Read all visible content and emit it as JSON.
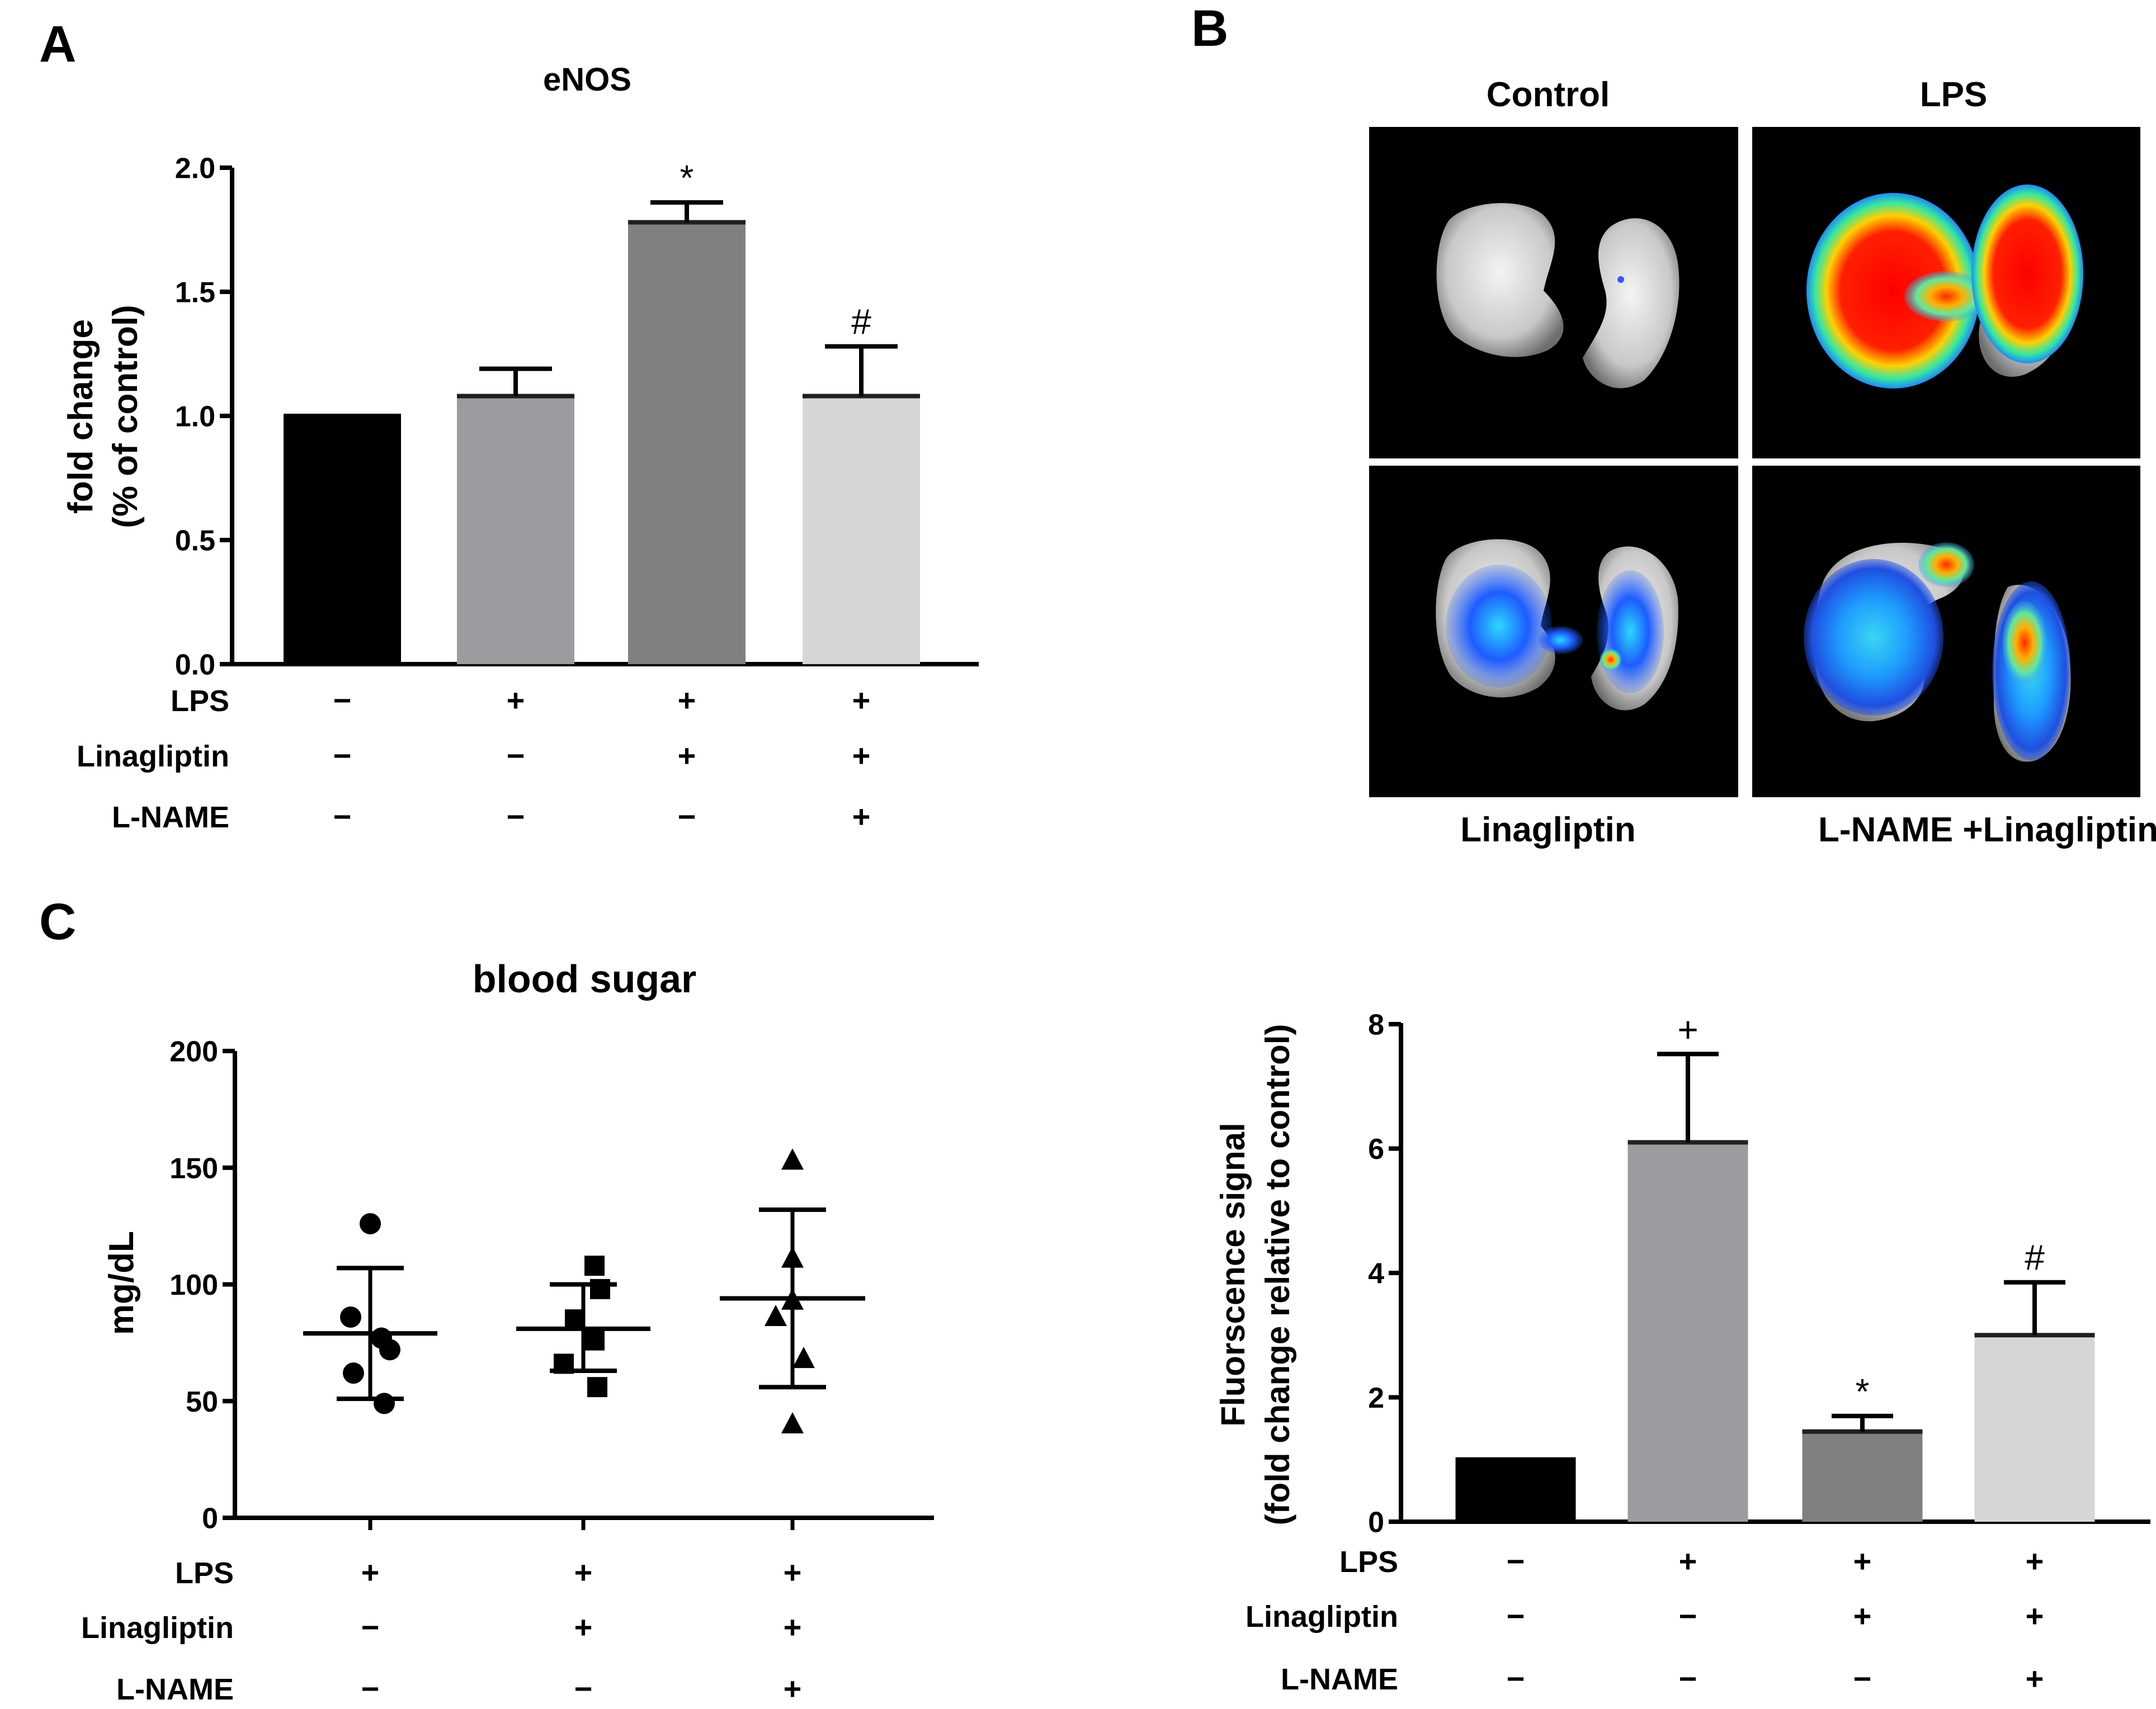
{
  "panels": {
    "a": {
      "letter": "A"
    },
    "b": {
      "letter": "B"
    },
    "c": {
      "letter": "C"
    }
  },
  "chart_data": [
    {
      "id": "a",
      "type": "bar",
      "title": "eNOS",
      "ylabel_lines": [
        "fold change",
        "(% of control)"
      ],
      "ylim": [
        0,
        2.0
      ],
      "yticks": [
        0.0,
        0.5,
        1.0,
        1.5,
        2.0
      ],
      "ytick_labels": [
        "0.0",
        "0.5",
        "1.0",
        "1.5",
        "2.0"
      ],
      "values": [
        1.0,
        1.08,
        1.78,
        1.08
      ],
      "errors": [
        0.0,
        0.11,
        0.08,
        0.2
      ],
      "colors": [
        "#000000",
        "#9b9ba0",
        "#808080",
        "#d6d6d6"
      ],
      "annotations": [
        "",
        "",
        "*",
        "#"
      ],
      "treatments": [
        {
          "label": "LPS",
          "marks": [
            "−",
            "+",
            "+",
            "+"
          ]
        },
        {
          "label": "Linagliptin",
          "marks": [
            "−",
            "−",
            "+",
            "+"
          ]
        },
        {
          "label": "L-NAME",
          "marks": [
            "−",
            "−",
            "−",
            "+"
          ]
        }
      ]
    },
    {
      "id": "c",
      "type": "scatter",
      "title": "blood sugar",
      "ylabel": "mg/dL",
      "ylim": [
        0,
        200
      ],
      "yticks": [
        0,
        50,
        100,
        150,
        200
      ],
      "ytick_labels": [
        "0",
        "50",
        "100",
        "150",
        "200"
      ],
      "groups": [
        {
          "marker": "circle",
          "points": [
            126,
            86,
            77,
            72,
            62,
            49
          ],
          "mean": 79,
          "sd_low": 51,
          "sd_high": 107
        },
        {
          "marker": "square",
          "points": [
            108,
            98,
            85,
            76,
            66,
            56
          ],
          "mean": 81,
          "sd_low": 63,
          "sd_high": 100
        },
        {
          "marker": "triangle",
          "points": [
            153,
            111,
            93,
            86,
            68,
            40
          ],
          "mean": 94,
          "sd_low": 56,
          "sd_high": 132
        }
      ],
      "treatments": [
        {
          "label": "LPS",
          "marks": [
            "+",
            "+",
            "+"
          ]
        },
        {
          "label": "Linagliptin",
          "marks": [
            "−",
            "+",
            "+"
          ]
        },
        {
          "label": "L-NAME",
          "marks": [
            "−",
            "−",
            "+"
          ]
        }
      ]
    },
    {
      "id": "d",
      "type": "bar",
      "title": "",
      "ylabel_lines": [
        "Fluorscence signal",
        "(fold change relative to control)"
      ],
      "ylim": [
        0,
        8
      ],
      "yticks": [
        0,
        2,
        4,
        6,
        8
      ],
      "ytick_labels": [
        "0",
        "2",
        "4",
        "6",
        "8"
      ],
      "values": [
        1.0,
        6.1,
        1.45,
        3.0
      ],
      "errors": [
        0.0,
        1.42,
        0.25,
        0.85
      ],
      "colors": [
        "#000000",
        "#9b9ba0",
        "#808080",
        "#d6d6d6"
      ],
      "annotations": [
        "",
        "+",
        "*",
        "#"
      ],
      "treatments": [
        {
          "label": "LPS",
          "marks": [
            "−",
            "+",
            "+",
            "+"
          ]
        },
        {
          "label": "Linagliptin",
          "marks": [
            "−",
            "−",
            "+",
            "+"
          ]
        },
        {
          "label": "L-NAME",
          "marks": [
            "−",
            "−",
            "−",
            "+"
          ]
        }
      ]
    }
  ],
  "imaging": {
    "top_labels": [
      "Control",
      "LPS"
    ],
    "bottom_labels": [
      "Linagliptin",
      "L-NAME +Linagliptin"
    ],
    "images": [
      {
        "condition": "Control",
        "signal": "none"
      },
      {
        "condition": "LPS",
        "signal": "high"
      },
      {
        "condition": "Linagliptin",
        "signal": "low"
      },
      {
        "condition": "L-NAME +Linagliptin",
        "signal": "medium"
      }
    ]
  }
}
